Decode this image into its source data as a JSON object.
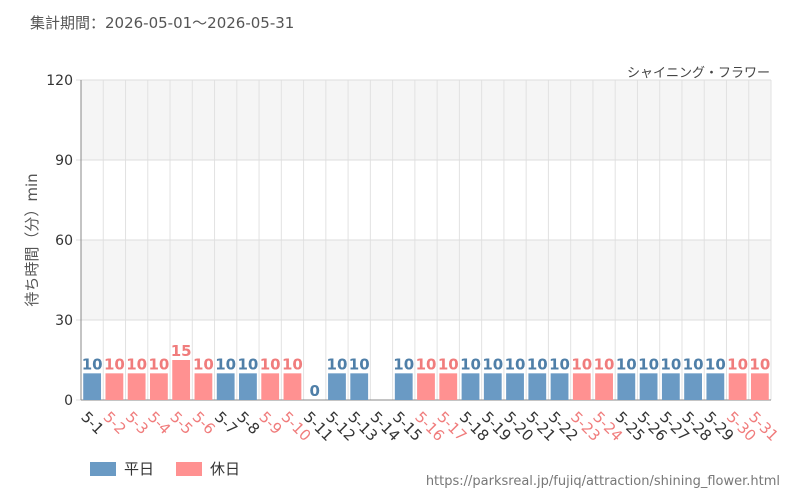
{
  "header": {
    "period": "集計期間：2026-05-01～2026-05-31"
  },
  "series_label": "シャイニング・フラワー",
  "footer": {
    "url": "https://parksreal.jp/fujiq/attraction/shining_flower.html"
  },
  "legend": [
    {
      "label": "平日",
      "color": "#6a9ac4"
    },
    {
      "label": "休日",
      "color": "#ff9191"
    }
  ],
  "chart_data": {
    "type": "bar",
    "ylabel": "待ち時間（分）min",
    "ylim": [
      0,
      120
    ],
    "yticks": [
      0,
      30,
      60,
      90,
      120
    ],
    "grid": true,
    "categories": [
      "5-1",
      "5-2",
      "5-3",
      "5-4",
      "5-5",
      "5-6",
      "5-7",
      "5-8",
      "5-9",
      "5-10",
      "5-11",
      "5-12",
      "5-13",
      "5-14",
      "5-15",
      "5-16",
      "5-17",
      "5-18",
      "5-19",
      "5-20",
      "5-21",
      "5-22",
      "5-23",
      "5-24",
      "5-25",
      "5-26",
      "5-27",
      "5-28",
      "5-29",
      "5-30",
      "5-31"
    ],
    "values": [
      10,
      10,
      10,
      10,
      15,
      10,
      10,
      10,
      10,
      10,
      0,
      10,
      10,
      null,
      10,
      10,
      10,
      10,
      10,
      10,
      10,
      10,
      10,
      10,
      10,
      10,
      10,
      10,
      10,
      10,
      10
    ],
    "day_type": [
      "weekday",
      "holiday",
      "holiday",
      "holiday",
      "holiday",
      "holiday",
      "weekday",
      "weekday",
      "holiday",
      "holiday",
      "weekday",
      "weekday",
      "weekday",
      "weekday",
      "weekday",
      "holiday",
      "holiday",
      "weekday",
      "weekday",
      "weekday",
      "weekday",
      "weekday",
      "holiday",
      "holiday",
      "weekday",
      "weekday",
      "weekday",
      "weekday",
      "weekday",
      "holiday",
      "holiday"
    ],
    "colors": {
      "weekday": "#6a9ac4",
      "holiday": "#ff9191",
      "weekday_label": "#4f7fa8",
      "holiday_label": "#f07c7c"
    }
  }
}
